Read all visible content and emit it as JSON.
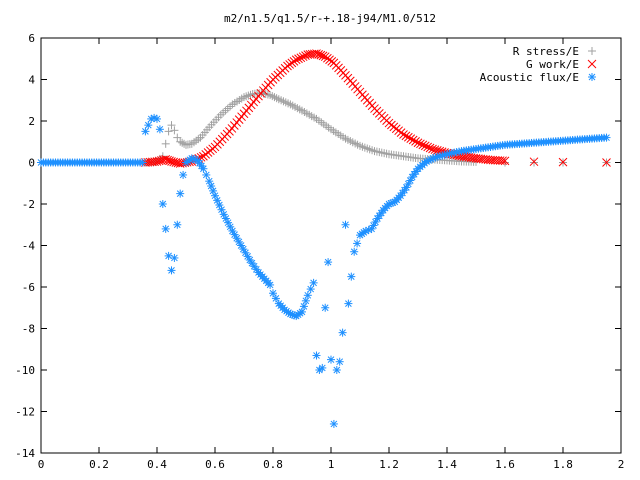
{
  "chart_data": {
    "type": "scatter",
    "title": "m2/n1.5/q1.5/r-+.18-j94/M1.0/512",
    "xlabel": "",
    "ylabel": "",
    "xlim": [
      0,
      2
    ],
    "ylim": [
      -14,
      6
    ],
    "xticks": [
      "0",
      "0.2",
      "0.4",
      "0.6",
      "0.8",
      "1",
      "1.2",
      "1.4",
      "1.6",
      "1.8",
      "2"
    ],
    "yticks": [
      "6",
      "4",
      "2",
      "0",
      "-2",
      "-4",
      "-6",
      "-8",
      "-10",
      "-12",
      "-14"
    ],
    "grid": false,
    "legend_position": "top-right",
    "series": [
      {
        "name": "R stress/E",
        "marker": "plus",
        "color": "#a0a0a0",
        "points": [
          [
            0.36,
            0.0
          ],
          [
            0.38,
            0.0
          ],
          [
            0.4,
            0.05
          ],
          [
            0.42,
            0.3
          ],
          [
            0.43,
            0.9
          ],
          [
            0.44,
            1.5
          ],
          [
            0.45,
            1.8
          ],
          [
            0.46,
            1.55
          ],
          [
            0.47,
            1.2
          ],
          [
            0.48,
            1.0
          ],
          [
            0.5,
            0.85
          ],
          [
            0.52,
            0.9
          ],
          [
            0.55,
            1.2
          ],
          [
            0.58,
            1.7
          ],
          [
            0.62,
            2.3
          ],
          [
            0.66,
            2.8
          ],
          [
            0.7,
            3.15
          ],
          [
            0.73,
            3.3
          ],
          [
            0.76,
            3.35
          ],
          [
            0.79,
            3.25
          ],
          [
            0.82,
            3.05
          ],
          [
            0.86,
            2.8
          ],
          [
            0.9,
            2.5
          ],
          [
            0.95,
            2.1
          ],
          [
            1.0,
            1.6
          ],
          [
            1.05,
            1.15
          ],
          [
            1.1,
            0.8
          ],
          [
            1.15,
            0.55
          ],
          [
            1.2,
            0.4
          ],
          [
            1.25,
            0.3
          ],
          [
            1.3,
            0.2
          ],
          [
            1.35,
            0.15
          ],
          [
            1.4,
            0.1
          ],
          [
            1.45,
            0.05
          ],
          [
            1.5,
            0.03
          ],
          [
            1.6,
            0.0
          ],
          [
            1.7,
            0.0
          ],
          [
            1.8,
            0.0
          ],
          [
            1.95,
            0.0
          ]
        ]
      },
      {
        "name": "G work/E",
        "marker": "cross",
        "color": "#ff0000",
        "points": [
          [
            0.36,
            0.0
          ],
          [
            0.4,
            0.05
          ],
          [
            0.43,
            0.15
          ],
          [
            0.45,
            0.05
          ],
          [
            0.48,
            -0.05
          ],
          [
            0.52,
            0.05
          ],
          [
            0.56,
            0.3
          ],
          [
            0.6,
            0.75
          ],
          [
            0.65,
            1.5
          ],
          [
            0.7,
            2.35
          ],
          [
            0.75,
            3.2
          ],
          [
            0.8,
            4.0
          ],
          [
            0.85,
            4.65
          ],
          [
            0.88,
            4.95
          ],
          [
            0.92,
            5.2
          ],
          [
            0.95,
            5.25
          ],
          [
            0.98,
            5.1
          ],
          [
            1.01,
            4.8
          ],
          [
            1.05,
            4.2
          ],
          [
            1.1,
            3.4
          ],
          [
            1.15,
            2.6
          ],
          [
            1.2,
            1.9
          ],
          [
            1.25,
            1.35
          ],
          [
            1.3,
            0.95
          ],
          [
            1.35,
            0.65
          ],
          [
            1.4,
            0.45
          ],
          [
            1.45,
            0.3
          ],
          [
            1.5,
            0.2
          ],
          [
            1.55,
            0.12
          ],
          [
            1.6,
            0.08
          ],
          [
            1.7,
            0.04
          ],
          [
            1.8,
            0.02
          ],
          [
            1.95,
            0.0
          ]
        ]
      },
      {
        "name": "Acoustic flux/E",
        "marker": "star",
        "color": "#1e90ff",
        "points": [
          [
            0.0,
            0.0
          ],
          [
            0.05,
            0.0
          ],
          [
            0.1,
            0.0
          ],
          [
            0.15,
            0.0
          ],
          [
            0.2,
            0.0
          ],
          [
            0.25,
            0.0
          ],
          [
            0.3,
            0.0
          ],
          [
            0.35,
            0.0
          ],
          [
            0.36,
            1.5
          ],
          [
            0.37,
            1.8
          ],
          [
            0.38,
            2.1
          ],
          [
            0.39,
            2.15
          ],
          [
            0.4,
            2.1
          ],
          [
            0.41,
            1.6
          ],
          [
            0.42,
            -2.0
          ],
          [
            0.43,
            -3.2
          ],
          [
            0.44,
            -4.5
          ],
          [
            0.45,
            -5.2
          ],
          [
            0.46,
            -4.6
          ],
          [
            0.47,
            -3.0
          ],
          [
            0.48,
            -1.5
          ],
          [
            0.49,
            -0.6
          ],
          [
            0.5,
            0.0
          ],
          [
            0.52,
            0.2
          ],
          [
            0.54,
            0.1
          ],
          [
            0.56,
            -0.3
          ],
          [
            0.58,
            -0.9
          ],
          [
            0.6,
            -1.6
          ],
          [
            0.63,
            -2.5
          ],
          [
            0.66,
            -3.3
          ],
          [
            0.69,
            -4.0
          ],
          [
            0.72,
            -4.7
          ],
          [
            0.75,
            -5.3
          ],
          [
            0.77,
            -5.6
          ],
          [
            0.79,
            -5.9
          ],
          [
            0.8,
            -6.3
          ],
          [
            0.82,
            -6.8
          ],
          [
            0.84,
            -7.1
          ],
          [
            0.86,
            -7.3
          ],
          [
            0.88,
            -7.4
          ],
          [
            0.9,
            -7.2
          ],
          [
            0.92,
            -6.4
          ],
          [
            0.94,
            -5.8
          ],
          [
            0.95,
            -9.3
          ],
          [
            0.96,
            -10.0
          ],
          [
            0.97,
            -9.9
          ],
          [
            0.98,
            -7.0
          ],
          [
            0.99,
            -4.8
          ],
          [
            1.0,
            -9.5
          ],
          [
            1.01,
            -12.6
          ],
          [
            1.02,
            -10.0
          ],
          [
            1.03,
            -9.6
          ],
          [
            1.04,
            -8.2
          ],
          [
            1.05,
            -3.0
          ],
          [
            1.06,
            -6.8
          ],
          [
            1.07,
            -5.5
          ],
          [
            1.08,
            -4.3
          ],
          [
            1.09,
            -3.9
          ],
          [
            1.1,
            -3.5
          ],
          [
            1.12,
            -3.3
          ],
          [
            1.14,
            -3.2
          ],
          [
            1.16,
            -2.7
          ],
          [
            1.18,
            -2.3
          ],
          [
            1.2,
            -2.0
          ],
          [
            1.22,
            -1.9
          ],
          [
            1.24,
            -1.6
          ],
          [
            1.26,
            -1.2
          ],
          [
            1.28,
            -0.7
          ],
          [
            1.3,
            -0.3
          ],
          [
            1.33,
            0.05
          ],
          [
            1.36,
            0.25
          ],
          [
            1.4,
            0.4
          ],
          [
            1.45,
            0.55
          ],
          [
            1.5,
            0.65
          ],
          [
            1.55,
            0.75
          ],
          [
            1.6,
            0.85
          ],
          [
            1.65,
            0.9
          ],
          [
            1.7,
            0.95
          ],
          [
            1.75,
            1.0
          ],
          [
            1.8,
            1.05
          ],
          [
            1.85,
            1.1
          ],
          [
            1.9,
            1.15
          ],
          [
            1.95,
            1.2
          ]
        ]
      }
    ]
  }
}
